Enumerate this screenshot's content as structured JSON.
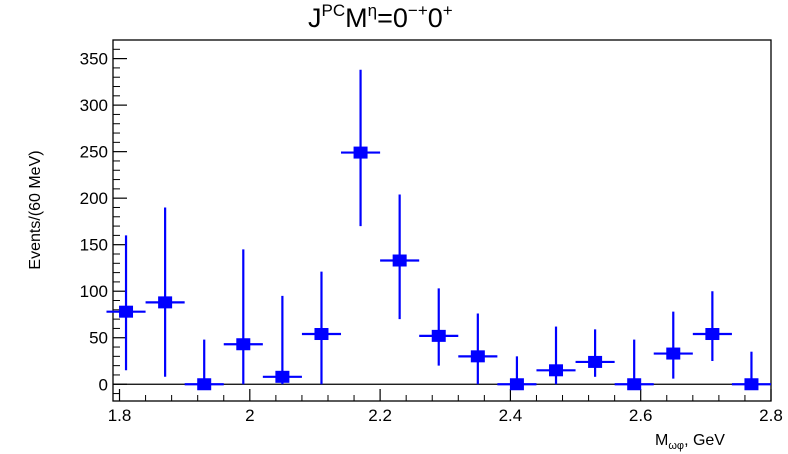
{
  "chart_data": {
    "type": "scatter",
    "title": {
      "main": "J",
      "sup1": "PC",
      "mid": "M",
      "sup2": "η",
      "eq": "=0",
      "sup3": "−+",
      "tail": "0",
      "sup4": "+"
    },
    "xlabel": {
      "main": "M",
      "sub": "ωφ",
      "unit": ", GeV"
    },
    "ylabel": "Events/(60 MeV)",
    "xlim": [
      1.79,
      2.8
    ],
    "ylim": [
      -18,
      370
    ],
    "x_ticks": [
      1.8,
      2,
      2.2,
      2.4,
      2.6,
      2.8
    ],
    "x_tick_labels": [
      "1.8",
      "2",
      "2.2",
      "2.4",
      "2.6",
      "2.8"
    ],
    "y_ticks": [
      0,
      50,
      100,
      150,
      200,
      250,
      300,
      350
    ],
    "y_tick_labels": [
      "0",
      "50",
      "100",
      "150",
      "200",
      "250",
      "300",
      "350"
    ],
    "zero_line": true,
    "bin_width": 0.06,
    "series": [
      {
        "color": "#0000ff",
        "x": [
          1.81,
          1.87,
          1.93,
          1.99,
          2.05,
          2.11,
          2.17,
          2.23,
          2.29,
          2.35,
          2.41,
          2.47,
          2.53,
          2.59,
          2.65,
          2.71,
          2.77
        ],
        "y": [
          78,
          88,
          0,
          43,
          8,
          54,
          249,
          133,
          52,
          30,
          0,
          15,
          24,
          0,
          33,
          54,
          0
        ],
        "err_low": [
          63,
          80,
          0,
          43,
          8,
          54,
          79,
          63,
          32,
          30,
          0,
          15,
          16,
          0,
          27,
          29,
          0
        ],
        "err_high": [
          82,
          102,
          48,
          102,
          87,
          67,
          89,
          71,
          51,
          46,
          30,
          47,
          35,
          48,
          45,
          46,
          35
        ]
      }
    ]
  }
}
